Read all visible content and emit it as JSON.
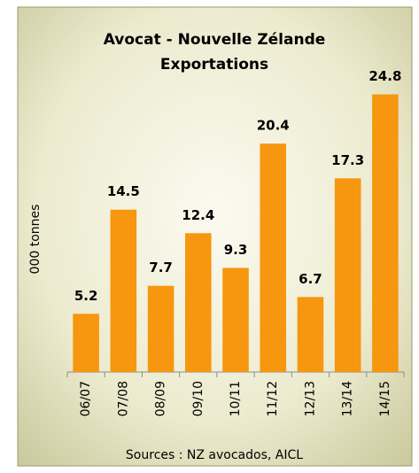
{
  "chart_data": {
    "type": "bar",
    "title": [
      "Avocat - Nouvelle Zélande",
      "Exportations"
    ],
    "ylabel": "000 tonnes",
    "source": "Sources : NZ avocados, AICL",
    "categories": [
      "06/07",
      "07/08",
      "08/09",
      "09/10",
      "10/11",
      "11/12",
      "12/13",
      "13/14",
      "14/15"
    ],
    "values": [
      5.2,
      14.5,
      7.7,
      12.4,
      9.3,
      20.4,
      6.7,
      17.3,
      24.8
    ],
    "color": "#f7960f",
    "ylim": [
      0,
      25
    ]
  }
}
